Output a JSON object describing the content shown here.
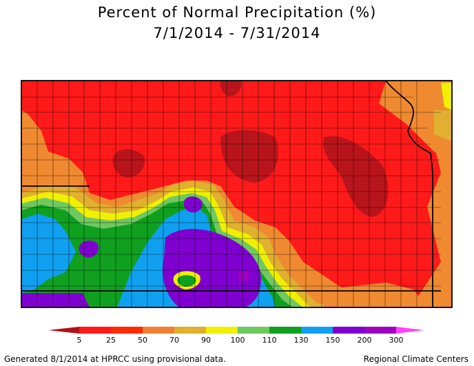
{
  "title_line1": "Percent of Normal Precipitation (%)",
  "title_line2": "7/1/2014 - 7/31/2014",
  "footer_left": "Generated 8/1/2014 at HPRCC using provisional data.",
  "footer_right": "Regional Climate Centers",
  "legend": {
    "labels": [
      "5",
      "25",
      "50",
      "70",
      "90",
      "100",
      "110",
      "130",
      "150",
      "200",
      "300"
    ],
    "colors": [
      "#b2101a",
      "#ff1a1a",
      "#ff2a00",
      "#f08030",
      "#e0b030",
      "#f0f000",
      "#70c860",
      "#10a020",
      "#10a0f0",
      "#8000d0",
      "#a000c0",
      "#ff40ff"
    ],
    "low_arrow_color": "#b2101a",
    "high_arrow_color": "#ff40ff"
  },
  "palette": {
    "dark_red": "#b8141c",
    "red": "#ff1a1a",
    "orange_red": "#f04020",
    "orange": "#f08a30",
    "gold": "#e0b030",
    "yellow": "#f0f000",
    "light_green": "#70c860",
    "green": "#10a020",
    "blue": "#10a0f0",
    "purple": "#8000d0",
    "violet": "#a000c0"
  }
}
